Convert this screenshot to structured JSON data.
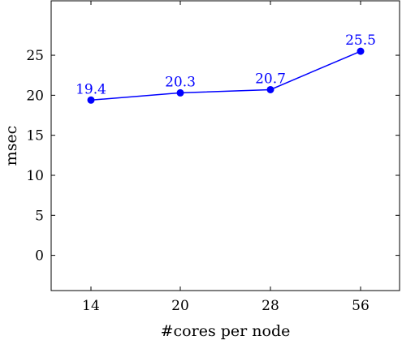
{
  "chart_data": {
    "type": "line",
    "title": "",
    "xlabel": "#cores per node",
    "ylabel": "msec",
    "categories": [
      "14",
      "20",
      "28",
      "56"
    ],
    "yticks": [
      0,
      5,
      10,
      15,
      20,
      25
    ],
    "ylim": [
      -4.4,
      31.8
    ],
    "grid": false,
    "legend": "none",
    "series": [
      {
        "values": [
          19.4,
          20.3,
          20.7,
          25.5
        ],
        "labels": [
          "19.4",
          "20.3",
          "20.7",
          "25.5"
        ],
        "color": "#0000ff"
      }
    ]
  }
}
